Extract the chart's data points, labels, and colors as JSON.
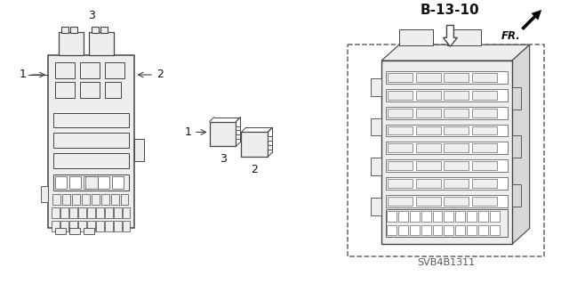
{
  "bg_color": "#ffffff",
  "title_label": "B-13-10",
  "part_code": "SVB4B1311",
  "fr_label": "FR.",
  "line_color": "#444444",
  "dashed_color": "#666666",
  "text_color": "#111111",
  "gray_fill": "#d8d8d8",
  "light_gray": "#eeeeee"
}
